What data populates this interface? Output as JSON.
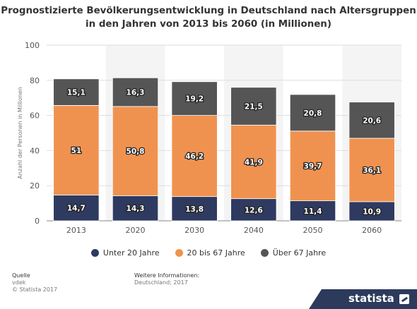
{
  "title": {
    "line1": "Prognostizierte Bevölkerungsentwicklung in Deutschland nach Altersgruppen",
    "line2": "in den Jahren von 2013 bis 2060 (in Millionen)"
  },
  "colors": {
    "unter20": "#2e3a60",
    "mitte": "#f0924f",
    "ueber67": "#555555",
    "grid": "#dddddd",
    "band": "#f4f4f4"
  },
  "chart_data": {
    "type": "bar",
    "stacked": true,
    "categories": [
      "2013",
      "2020",
      "2030",
      "2040",
      "2050",
      "2060"
    ],
    "series": [
      {
        "name": "Unter 20 Jahre",
        "values": [
          14.7,
          14.3,
          13.8,
          12.6,
          11.4,
          10.9
        ],
        "labels": [
          "14,7",
          "14,3",
          "13,8",
          "12,6",
          "11,4",
          "10,9"
        ]
      },
      {
        "name": "20 bis 67 Jahre",
        "values": [
          51,
          50.8,
          46.2,
          41.9,
          39.7,
          36.1
        ],
        "labels": [
          "51",
          "50,8",
          "46,2",
          "41,9",
          "39,7",
          "36,1"
        ]
      },
      {
        "name": "Über 67 Jahre",
        "values": [
          15.1,
          16.3,
          19.2,
          21.5,
          20.8,
          20.6
        ],
        "labels": [
          "15,1",
          "16,3",
          "19,2",
          "21,5",
          "20,8",
          "20,6"
        ]
      }
    ],
    "ylabel": "Anzahl der Personen in Millionen",
    "ylim": [
      0,
      100
    ],
    "yticks": [
      0,
      20,
      40,
      60,
      80,
      100
    ],
    "grid": true,
    "legend": "bottom"
  },
  "footer": {
    "source_heading": "Quelle",
    "source_name": "vdek",
    "copyright": "© Statista 2017",
    "info_heading": "Weitere Informationen:",
    "info_text": "Deutschland; 2017"
  },
  "brand": "statista"
}
